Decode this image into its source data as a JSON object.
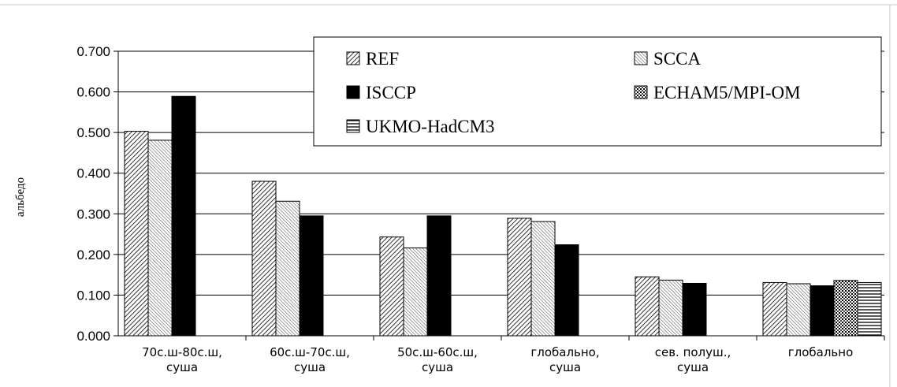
{
  "chart_data": {
    "type": "bar",
    "title": "",
    "xlabel": "",
    "ylabel": "альбедо",
    "ylim": [
      0,
      0.7
    ],
    "yticks": [
      "0.000",
      "0.100",
      "0.200",
      "0.300",
      "0.400",
      "0.500",
      "0.600",
      "0.700"
    ],
    "grid": true,
    "legend_position": "top-right",
    "categories": [
      [
        "70с.ш-80с.ш,",
        "суша"
      ],
      [
        "60с.ш-70с.ш,",
        "суша"
      ],
      [
        "50с.ш-60с.ш,",
        "суша"
      ],
      [
        "глобально,",
        "суша"
      ],
      [
        "сев. полуш.,",
        "суша"
      ],
      [
        "глобально"
      ]
    ],
    "series": [
      {
        "name": "REF",
        "pattern": "diag-dense",
        "values": [
          0.503,
          0.38,
          0.243,
          0.289,
          0.145,
          0.131
        ]
      },
      {
        "name": "SCCA",
        "pattern": "diag-light",
        "values": [
          0.481,
          0.331,
          0.216,
          0.281,
          0.137,
          0.128
        ]
      },
      {
        "name": "ISCCP",
        "pattern": "solid-black",
        "values": [
          0.589,
          0.295,
          0.295,
          0.224,
          0.129,
          0.123
        ]
      },
      {
        "name": "ECHAM5/MPI-OM",
        "pattern": "dots",
        "values": [
          null,
          null,
          null,
          null,
          null,
          0.136
        ]
      },
      {
        "name": "UKMO-HadCM3",
        "pattern": "hstripes",
        "values": [
          null,
          null,
          null,
          null,
          null,
          0.131
        ]
      }
    ]
  },
  "colors": {
    "bar_stroke": "#000000",
    "grid": "#000000",
    "frame": "#c0c0c0"
  }
}
